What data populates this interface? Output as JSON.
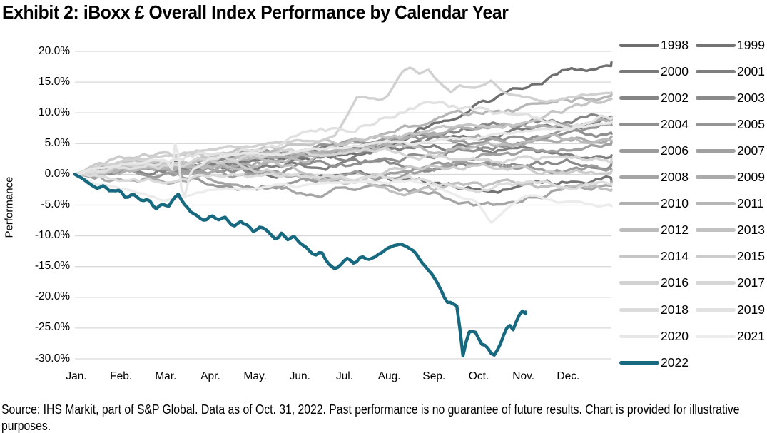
{
  "title": "Exhibit 2: iBoxx £ Overall Index Performance by Calendar Year",
  "source_note": "Source: IHS Markit, part of S&P Global. Data as of Oct. 31, 2022. Past performance is no guarantee of future results. Chart is provided for illustrative purposes.",
  "colors": {
    "accent_2022": "#17697f",
    "gridline": "#d9d9d9",
    "gray_oldest": "#6f6f6f",
    "gray_newest": "#ececec",
    "text": "#000000"
  },
  "chart_data": {
    "type": "line",
    "title": "Exhibit 2: iBoxx £ Overall Index Performance by Calendar Year",
    "xlabel": "",
    "ylabel": "Performance",
    "x_tick_labels": [
      "Jan.",
      "Feb.",
      "Mar.",
      "Apr.",
      "May.",
      "Jun.",
      "Jul.",
      "Aug.",
      "Sep.",
      "Oct.",
      "Nov.",
      "Dec."
    ],
    "y_tick_labels": [
      "20.0%",
      "15.0%",
      "10.0%",
      "5.0%",
      "0.0%",
      "-5.0%",
      "-10.0%",
      "-15.0%",
      "-20.0%",
      "-25.0%",
      "-30.0%"
    ],
    "y_tick_values": [
      20,
      15,
      10,
      5,
      0,
      -5,
      -10,
      -15,
      -20,
      -25,
      -30
    ],
    "ylim": [
      -30,
      20
    ],
    "x_unit": "months elapsed in calendar year (0 = Jan 1, 12 = Dec 31)",
    "grid": "horizontal only",
    "legend_position": "right, two columns, 2022 last",
    "note": "Values are cumulative year-to-date performance in percent, estimated from gridlines; 2022 series ends Oct. 31.",
    "series": [
      {
        "name": "1998",
        "color": "#6f6f6f",
        "monthly": [
          0,
          1.0,
          1.5,
          2.0,
          2.0,
          2.5,
          3.0,
          4.5,
          8.0,
          11.5,
          14.0,
          16.5,
          18.2
        ]
      },
      {
        "name": "1999",
        "color": "#747474",
        "monthly": [
          0,
          1.2,
          1.8,
          1.4,
          1.0,
          0.4,
          -0.2,
          -0.6,
          -1.6,
          -2.4,
          -2.0,
          -1.6,
          -1.2
        ]
      },
      {
        "name": "2000",
        "color": "#7a7a7a",
        "monthly": [
          0,
          0.4,
          1.2,
          1.8,
          2.2,
          2.8,
          3.8,
          4.4,
          5.4,
          6.4,
          7.4,
          8.4,
          8.9
        ]
      },
      {
        "name": "2001",
        "color": "#7f7f7f",
        "monthly": [
          0,
          1.0,
          1.6,
          1.2,
          0.6,
          1.0,
          2.0,
          3.2,
          4.2,
          4.6,
          3.6,
          2.6,
          3.1
        ]
      },
      {
        "name": "2002",
        "color": "#858585",
        "monthly": [
          0,
          0.6,
          1.0,
          1.4,
          2.2,
          3.2,
          4.2,
          5.2,
          6.6,
          7.6,
          8.0,
          9.0,
          9.3
        ]
      },
      {
        "name": "2003",
        "color": "#8a8a8a",
        "monthly": [
          0,
          0.9,
          1.4,
          2.0,
          3.0,
          3.6,
          2.6,
          1.6,
          1.2,
          2.0,
          1.6,
          1.9,
          2.1
        ]
      },
      {
        "name": "2004",
        "color": "#909090",
        "monthly": [
          0,
          1.0,
          1.4,
          1.0,
          0.4,
          1.0,
          1.6,
          2.6,
          3.6,
          4.6,
          5.4,
          6.0,
          6.6
        ]
      },
      {
        "name": "2005",
        "color": "#959595",
        "monthly": [
          0,
          1.0,
          2.0,
          2.4,
          3.4,
          4.4,
          5.0,
          5.8,
          5.4,
          5.0,
          5.6,
          6.6,
          8.0
        ]
      },
      {
        "name": "2006",
        "color": "#9b9b9b",
        "monthly": [
          0,
          0.4,
          -0.4,
          -1.0,
          -1.6,
          -1.0,
          -0.6,
          0.4,
          1.4,
          1.8,
          1.2,
          1.0,
          0.7
        ]
      },
      {
        "name": "2007",
        "color": "#a0a0a0",
        "monthly": [
          0,
          0.9,
          1.0,
          0.4,
          -0.6,
          -1.4,
          -1.0,
          0.0,
          1.0,
          2.4,
          3.4,
          4.4,
          5.3
        ]
      },
      {
        "name": "2008",
        "color": "#a5a5a5",
        "monthly": [
          0,
          1.2,
          0.6,
          -0.8,
          -1.8,
          -2.8,
          -2.4,
          -2.0,
          -3.2,
          -5.8,
          -4.2,
          -2.2,
          -1.2
        ]
      },
      {
        "name": "2009",
        "color": "#ababab",
        "monthly": [
          0,
          -1.4,
          -0.8,
          0.2,
          1.6,
          2.8,
          3.8,
          5.2,
          6.4,
          6.0,
          5.4,
          5.7,
          6.1
        ]
      },
      {
        "name": "2010",
        "color": "#b0b0b0",
        "monthly": [
          0,
          0.5,
          1.4,
          2.0,
          2.6,
          3.4,
          4.0,
          5.4,
          6.4,
          7.0,
          7.4,
          7.6,
          8.4
        ]
      },
      {
        "name": "2011",
        "color": "#b6b6b6",
        "monthly": [
          0,
          0.8,
          1.2,
          1.6,
          2.6,
          3.6,
          4.2,
          6.0,
          8.8,
          9.6,
          10.4,
          12.0,
          13.0
        ]
      },
      {
        "name": "2012",
        "color": "#bbbbbb",
        "monthly": [
          0,
          0.8,
          1.2,
          0.8,
          1.6,
          2.8,
          3.6,
          4.4,
          4.0,
          4.6,
          5.2,
          5.4,
          5.5
        ]
      },
      {
        "name": "2013",
        "color": "#c1c1c1",
        "monthly": [
          0,
          1.2,
          1.6,
          2.4,
          2.0,
          0.4,
          -1.6,
          -2.4,
          -2.8,
          -1.8,
          -2.2,
          -2.8,
          -2.5
        ]
      },
      {
        "name": "2014",
        "color": "#c6c6c6",
        "monthly": [
          0,
          1.4,
          2.2,
          2.6,
          3.4,
          4.2,
          4.6,
          5.6,
          6.6,
          7.6,
          9.0,
          10.8,
          12.3
        ]
      },
      {
        "name": "2015",
        "color": "#cccccc",
        "monthly": [
          0,
          2.2,
          3.0,
          2.4,
          1.0,
          0.2,
          -1.2,
          0.4,
          0.8,
          1.6,
          1.0,
          0.2,
          0.6
        ]
      },
      {
        "name": "2016",
        "color": "#d1d1d1",
        "points": [
          [
            0,
            0
          ],
          [
            0.5,
            1.5
          ],
          [
            1,
            2.0
          ],
          [
            1.5,
            2.5
          ],
          [
            2,
            3.0
          ],
          [
            2.5,
            3.5
          ],
          [
            3,
            4.0
          ],
          [
            3.5,
            4.5
          ],
          [
            4,
            4.5
          ],
          [
            4.5,
            5.0
          ],
          [
            5,
            5.5
          ],
          [
            5.5,
            5.5
          ],
          [
            5.8,
            6.2
          ],
          [
            6.1,
            9.5
          ],
          [
            6.3,
            12.3
          ],
          [
            6.5,
            12.4
          ],
          [
            6.8,
            12.0
          ],
          [
            7.0,
            12.8
          ],
          [
            7.3,
            16.5
          ],
          [
            7.5,
            17.4
          ],
          [
            7.7,
            16.2
          ],
          [
            7.9,
            16.8
          ],
          [
            8.1,
            15.3
          ],
          [
            8.4,
            13.5
          ],
          [
            8.6,
            14.5
          ],
          [
            9.0,
            14.0
          ],
          [
            9.3,
            15.2
          ],
          [
            9.6,
            13.0
          ],
          [
            10.0,
            12.5
          ],
          [
            10.5,
            11.8
          ],
          [
            11.0,
            12.4
          ],
          [
            11.5,
            13.0
          ],
          [
            12,
            13.3
          ]
        ]
      },
      {
        "name": "2017",
        "color": "#d6d6d6",
        "monthly": [
          0,
          1.2,
          1.6,
          2.2,
          3.0,
          3.4,
          2.6,
          3.6,
          3.2,
          2.2,
          2.6,
          3.0,
          2.5
        ]
      },
      {
        "name": "2018",
        "color": "#dcdcdc",
        "monthly": [
          0,
          -0.6,
          -1.2,
          -0.4,
          -0.8,
          -0.4,
          -0.8,
          -0.4,
          -1.6,
          -2.0,
          -1.4,
          -1.8,
          -1.5
        ]
      },
      {
        "name": "2019",
        "color": "#e1e1e1",
        "monthly": [
          0,
          1.4,
          2.4,
          3.6,
          4.4,
          6.0,
          7.2,
          9.6,
          11.6,
          10.2,
          9.0,
          8.0,
          9.2
        ]
      },
      {
        "name": "2020",
        "color": "#e7e7e7",
        "points": [
          [
            0,
            0
          ],
          [
            0.5,
            1.0
          ],
          [
            1,
            1.5
          ],
          [
            1.5,
            2.0
          ],
          [
            2,
            2.5
          ],
          [
            2.2,
            0.5
          ],
          [
            2.27,
            8.4
          ],
          [
            2.35,
            -1.5
          ],
          [
            2.45,
            -3.7
          ],
          [
            2.6,
            0.5
          ],
          [
            2.8,
            1.5
          ],
          [
            3,
            2.5
          ],
          [
            3.5,
            3.0
          ],
          [
            4,
            3.5
          ],
          [
            4.5,
            3.0
          ],
          [
            5,
            3.5
          ],
          [
            5.5,
            4.0
          ],
          [
            6,
            4.5
          ],
          [
            6.5,
            5.0
          ],
          [
            7,
            5.5
          ],
          [
            7.5,
            5.0
          ],
          [
            8,
            5.5
          ],
          [
            8.5,
            6.0
          ],
          [
            9,
            6.0
          ],
          [
            9.5,
            6.5
          ],
          [
            10,
            7.0
          ],
          [
            10.5,
            7.5
          ],
          [
            11,
            7.5
          ],
          [
            11.5,
            8.0
          ],
          [
            12,
            8.5
          ]
        ]
      },
      {
        "name": "2021",
        "color": "#ececec",
        "points": [
          [
            0,
            0
          ],
          [
            0.5,
            -1.5
          ],
          [
            1,
            -2.2
          ],
          [
            1.5,
            -3.2
          ],
          [
            2,
            -4.3
          ],
          [
            2.5,
            -3.6
          ],
          [
            3,
            -2.6
          ],
          [
            3.5,
            -2.2
          ],
          [
            4,
            -2.4
          ],
          [
            4.5,
            -1.8
          ],
          [
            5,
            -2.0
          ],
          [
            5.5,
            -1.6
          ],
          [
            6,
            -1.2
          ],
          [
            6.5,
            -0.8
          ],
          [
            7,
            -1.2
          ],
          [
            7.5,
            -1.0
          ],
          [
            8,
            -2.0
          ],
          [
            8.5,
            -3.4
          ],
          [
            9,
            -4.6
          ],
          [
            9.3,
            -7.8
          ],
          [
            9.6,
            -6.0
          ],
          [
            10,
            -3.8
          ],
          [
            10.3,
            -3.4
          ],
          [
            10.8,
            -4.6
          ],
          [
            11.3,
            -4.2
          ],
          [
            11.7,
            -5.4
          ],
          [
            12,
            -5.2
          ]
        ]
      },
      {
        "name": "2022",
        "color": "#17697f",
        "points": [
          [
            0,
            0
          ],
          [
            0.18,
            -0.7
          ],
          [
            0.35,
            -1.6
          ],
          [
            0.5,
            -2.3
          ],
          [
            0.62,
            -1.8
          ],
          [
            0.8,
            -2.7
          ],
          [
            1.0,
            -2.5
          ],
          [
            1.15,
            -3.9
          ],
          [
            1.3,
            -3.1
          ],
          [
            1.5,
            -4.5
          ],
          [
            1.65,
            -3.9
          ],
          [
            1.8,
            -5.5
          ],
          [
            1.95,
            -4.7
          ],
          [
            2.1,
            -5.0
          ],
          [
            2.3,
            -2.9
          ],
          [
            2.45,
            -4.7
          ],
          [
            2.6,
            -6.0
          ],
          [
            2.75,
            -6.9
          ],
          [
            2.9,
            -7.4
          ],
          [
            3.05,
            -6.5
          ],
          [
            3.2,
            -7.6
          ],
          [
            3.35,
            -6.9
          ],
          [
            3.55,
            -8.5
          ],
          [
            3.7,
            -7.9
          ],
          [
            3.85,
            -8.4
          ],
          [
            4.0,
            -9.6
          ],
          [
            4.15,
            -8.8
          ],
          [
            4.3,
            -9.3
          ],
          [
            4.5,
            -10.5
          ],
          [
            4.62,
            -9.5
          ],
          [
            4.75,
            -10.6
          ],
          [
            4.9,
            -9.8
          ],
          [
            5.05,
            -10.9
          ],
          [
            5.2,
            -11.7
          ],
          [
            5.35,
            -13.1
          ],
          [
            5.5,
            -12.3
          ],
          [
            5.65,
            -14.3
          ],
          [
            5.8,
            -15.6
          ],
          [
            5.95,
            -14.8
          ],
          [
            6.1,
            -13.7
          ],
          [
            6.25,
            -14.5
          ],
          [
            6.4,
            -13.3
          ],
          [
            6.55,
            -14.0
          ],
          [
            6.7,
            -13.6
          ],
          [
            6.85,
            -12.8
          ],
          [
            7.0,
            -12.1
          ],
          [
            7.15,
            -11.5
          ],
          [
            7.3,
            -11.2
          ],
          [
            7.45,
            -12.0
          ],
          [
            7.6,
            -12.8
          ],
          [
            7.75,
            -14.2
          ],
          [
            7.9,
            -15.4
          ],
          [
            8.05,
            -16.9
          ],
          [
            8.2,
            -19.0
          ],
          [
            8.3,
            -20.8
          ],
          [
            8.45,
            -21.0
          ],
          [
            8.55,
            -21.4
          ],
          [
            8.68,
            -29.4
          ],
          [
            8.8,
            -25.4
          ],
          [
            8.95,
            -25.2
          ],
          [
            9.1,
            -27.5
          ],
          [
            9.2,
            -27.9
          ],
          [
            9.35,
            -29.8
          ],
          [
            9.5,
            -28.0
          ],
          [
            9.6,
            -26.0
          ],
          [
            9.7,
            -24.4
          ],
          [
            9.8,
            -25.2
          ],
          [
            9.9,
            -23.2
          ],
          [
            10.0,
            -22.0
          ],
          [
            10.08,
            -22.4
          ]
        ]
      }
    ]
  }
}
